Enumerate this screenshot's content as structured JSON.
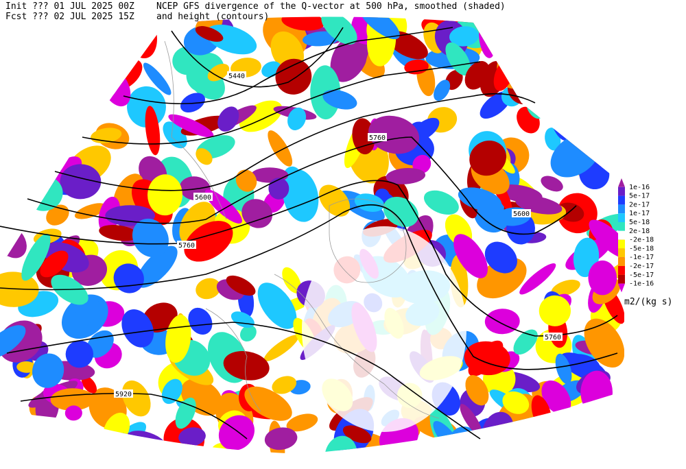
{
  "header": {
    "init": "Init  ??? 01 JUL 2025 00Z",
    "fcst": "Fcst ??? 02 JUL 2025 15Z",
    "title": "NCEP GFS divergence of the Q-vector at 500 hPa, smoothed (shaded)",
    "subtitle": "and height (contours)"
  },
  "contour_labels": [
    "5440",
    "5760",
    "5600",
    "5760",
    "5600",
    "5760",
    "5920"
  ],
  "colorbar": {
    "labels": [
      "1e-16",
      "5e-17",
      "2e-17",
      "1e-17",
      "5e-18",
      "2e-18",
      "-2e-18",
      "-5e-18",
      "-1e-17",
      "-2e-17",
      "-5e-17",
      "-1e-16"
    ],
    "colors": [
      "#a01ea0",
      "#6a1ec8",
      "#1e3cff",
      "#1e8cff",
      "#1ec8ff",
      "#30e6c0",
      "#ffffff",
      "#ffff00",
      "#ffc800",
      "#ff9600",
      "#ff0000",
      "#b40000",
      "#dc00dc"
    ],
    "units": "m2/(kg s)"
  }
}
